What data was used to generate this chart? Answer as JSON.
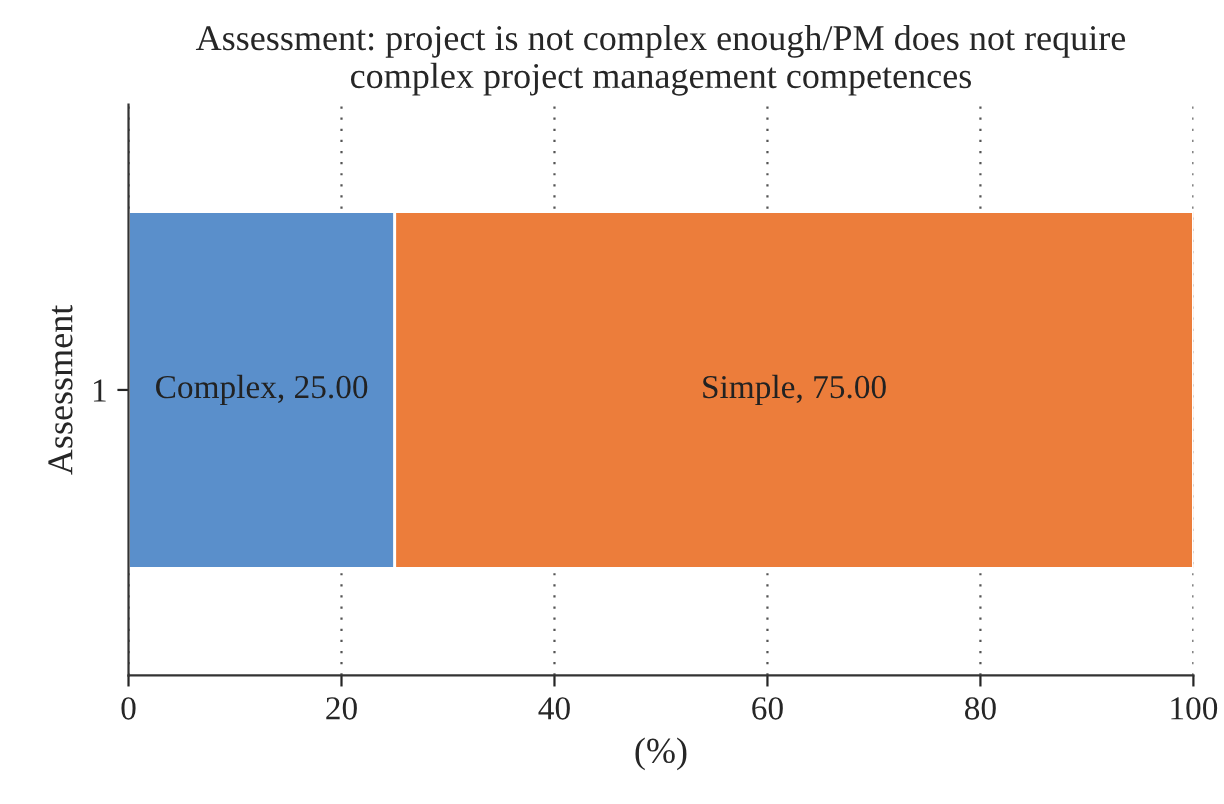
{
  "chart_data": {
    "type": "bar",
    "title": "Assessment: project is not complex enough/PM does not require\ncomplex project management competences",
    "orientation": "horizontal",
    "stacked": true,
    "categories": [
      "1"
    ],
    "xlabel": "(%)",
    "ylabel": "Assessment",
    "xlim": [
      0,
      100
    ],
    "xticks": [
      0,
      20,
      40,
      60,
      80,
      100
    ],
    "grid": "x",
    "legend": false,
    "series": [
      {
        "color": "#5a8fcb",
        "values": [
          25.0
        ],
        "value_labels": [
          "Complex, 25.00"
        ]
      },
      {
        "color": "#ec7d3b",
        "values": [
          75.0
        ],
        "value_labels": [
          "Simple, 75.00"
        ]
      }
    ]
  }
}
